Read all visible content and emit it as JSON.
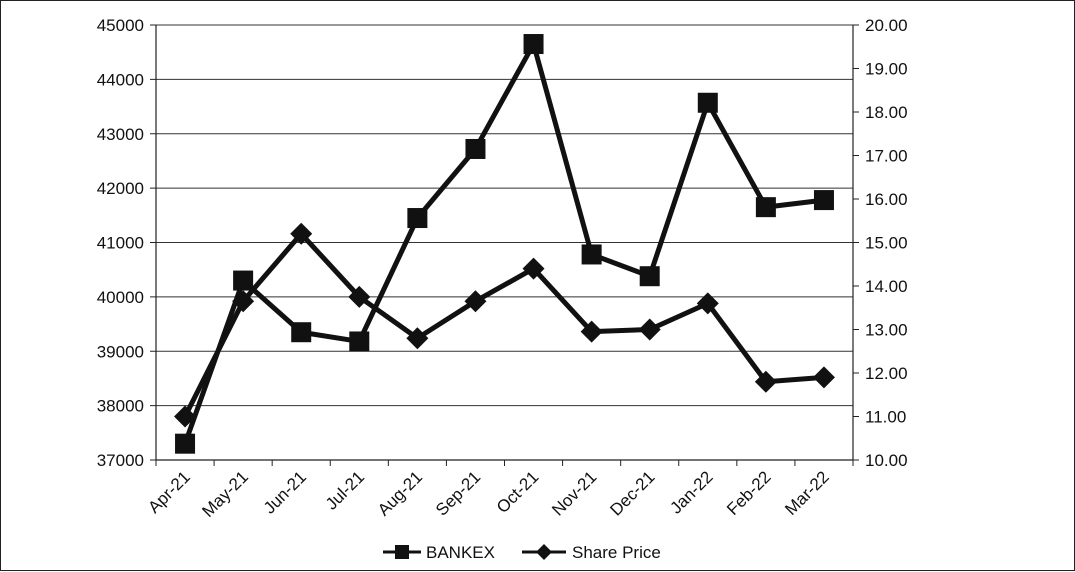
{
  "chart_data": {
    "type": "line",
    "categories": [
      "Apr-21",
      "May-21",
      "Jun-21",
      "Jul-21",
      "Aug-21",
      "Sep-21",
      "Oct-21",
      "Nov-21",
      "Dec-21",
      "Jan-22",
      "Feb-22",
      "Mar-22"
    ],
    "series": [
      {
        "name": "BANKEX",
        "axis": "left",
        "marker": "square",
        "color": "#111111",
        "values": [
          37300,
          40300,
          39350,
          39180,
          41450,
          42720,
          44650,
          40780,
          40380,
          43570,
          41650,
          41780
        ]
      },
      {
        "name": "Share Price",
        "axis": "right",
        "marker": "diamond",
        "color": "#111111",
        "values": [
          11.0,
          13.65,
          15.2,
          13.75,
          12.8,
          13.65,
          14.4,
          12.95,
          13.0,
          13.6,
          11.8,
          11.9
        ]
      }
    ],
    "y_left": {
      "lim": [
        37000,
        45000
      ],
      "ticks": [
        "37000",
        "38000",
        "39000",
        "40000",
        "41000",
        "42000",
        "43000",
        "44000",
        "45000"
      ]
    },
    "y_right": {
      "lim": [
        10,
        20
      ],
      "ticks": [
        "10.00",
        "11.00",
        "12.00",
        "13.00",
        "14.00",
        "15.00",
        "16.00",
        "17.00",
        "18.00",
        "19.00",
        "20.00"
      ]
    },
    "title": "",
    "xlabel": "",
    "ylabel": "",
    "grid": "horizontal",
    "legend_position": "bottom"
  }
}
